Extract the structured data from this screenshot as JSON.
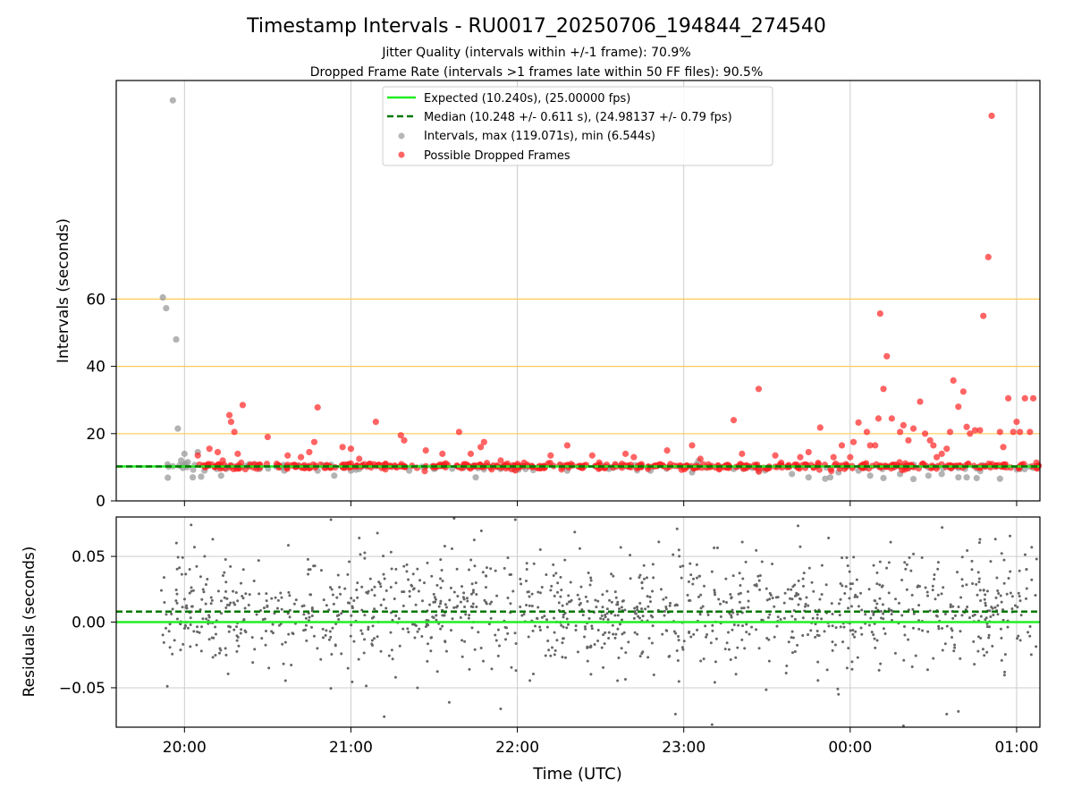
{
  "title": "Timestamp Intervals - RU0017_20250706_194844_274540",
  "subtitle_1": "Jitter Quality (intervals within +/-1 frame): 70.9%",
  "subtitle_2": "Dropped Frame Rate (intervals >1 frames late within 50 FF files): 90.5%",
  "colors": {
    "expected": "#22ee22",
    "median": "#007700",
    "intervals": "#999999",
    "dropped": "#ff2222",
    "threshold": "#ffcc55",
    "grid": "#cccccc",
    "residuals": "#666666"
  },
  "chart_data": [
    {
      "type": "scatter",
      "ylabel": "Intervals (seconds)",
      "ylim": [
        0,
        125
      ],
      "yticks": [
        "0",
        "20",
        "40",
        "60"
      ],
      "ytick_values": [
        0,
        20,
        40,
        60
      ],
      "xlim": [
        19.59,
        25.14
      ],
      "xticks": [
        "20:00",
        "21:00",
        "22:00",
        "23:00",
        "00:00",
        "01:00"
      ],
      "xtick_values": [
        20,
        21,
        22,
        23,
        24,
        25
      ],
      "grid": true,
      "legend_position": "upper-center",
      "threshold_lines": [
        20,
        40,
        60
      ],
      "series": [
        {
          "name": "Expected (10.240s), (25.00000 fps)",
          "kind": "hline",
          "value": 10.24
        },
        {
          "name": "Median (10.248 +/- 0.611 s), (24.98137 +/- 0.79 fps)",
          "kind": "hline-dashed",
          "value": 10.248
        },
        {
          "name": "Intervals, max (119.071s), min (6.544s)",
          "kind": "points",
          "x": [
            19.87,
            19.89,
            19.9,
            19.93,
            19.95,
            19.96,
            19.97,
            19.98,
            19.99,
            20.0,
            20.02,
            20.05,
            20.08,
            20.1,
            20.12,
            20.22,
            20.25,
            20.28,
            20.45,
            20.6,
            20.8,
            20.9,
            21.0,
            21.05,
            21.2,
            21.35,
            21.5,
            21.75,
            21.9,
            22.05,
            22.3,
            22.55,
            22.8,
            23.05,
            23.3,
            23.45,
            23.65,
            23.75,
            23.85,
            23.88,
            23.93,
            24.05,
            24.12,
            24.2,
            24.3,
            24.38,
            24.47,
            24.55,
            24.65,
            24.7,
            24.76,
            24.9,
            25.02
          ],
          "y": [
            60.5,
            57.3,
            6.9,
            119.1,
            48.0,
            21.5,
            10.5,
            12.0,
            9.8,
            14.0,
            11.5,
            7.0,
            14.5,
            7.2,
            9.0,
            7.5,
            9.5,
            10.5,
            9.5,
            9.0,
            9.0,
            7.5,
            9.0,
            9.5,
            10.0,
            9.0,
            9.5,
            7.0,
            9.5,
            9.5,
            9.0,
            9.5,
            9.0,
            8.5,
            9.5,
            9.0,
            8.0,
            7.0,
            6.6,
            7.0,
            8.5,
            9.0,
            7.5,
            6.8,
            8.0,
            6.5,
            7.5,
            8.0,
            7.0,
            7.0,
            6.8,
            6.6,
            9.5
          ]
        },
        {
          "name": "Possible Dropped Frames",
          "kind": "points",
          "x": [
            20.08,
            20.15,
            20.2,
            20.23,
            20.27,
            20.28,
            20.3,
            20.32,
            20.35,
            20.5,
            20.62,
            20.7,
            20.75,
            20.78,
            20.8,
            20.95,
            21.0,
            21.05,
            21.15,
            21.3,
            21.32,
            21.45,
            21.55,
            21.65,
            21.72,
            21.78,
            21.8,
            21.9,
            22.2,
            22.3,
            22.45,
            22.65,
            22.7,
            22.9,
            23.05,
            23.1,
            23.3,
            23.35,
            23.45,
            23.55,
            23.7,
            23.75,
            23.82,
            23.9,
            23.95,
            24.0,
            24.02,
            24.05,
            24.1,
            24.12,
            24.15,
            24.17,
            24.18,
            24.2,
            24.22,
            24.25,
            24.3,
            24.32,
            24.35,
            24.38,
            24.42,
            24.45,
            24.48,
            24.5,
            24.52,
            24.55,
            24.58,
            24.6,
            24.62,
            24.65,
            24.68,
            24.7,
            24.72,
            24.75,
            24.78,
            24.8,
            24.83,
            24.85,
            24.9,
            24.92,
            24.95,
            24.98,
            25.0,
            25.02,
            25.05,
            25.08,
            25.1
          ],
          "y": [
            13.5,
            15.5,
            14.5,
            12.0,
            25.5,
            23.5,
            20.5,
            14.0,
            28.5,
            19.0,
            13.5,
            13.0,
            14.5,
            17.5,
            27.8,
            16.0,
            15.5,
            12.5,
            23.5,
            19.5,
            18.0,
            15.0,
            14.0,
            20.5,
            14.0,
            16.0,
            17.5,
            12.0,
            13.5,
            16.5,
            13.5,
            14.0,
            13.0,
            15.0,
            16.5,
            12.5,
            24.0,
            14.0,
            33.3,
            13.5,
            13.0,
            14.5,
            21.8,
            13.0,
            16.5,
            13.0,
            17.5,
            23.3,
            20.5,
            16.5,
            16.5,
            24.5,
            55.7,
            33.3,
            43.0,
            24.5,
            20.5,
            22.5,
            18.0,
            21.5,
            29.5,
            20.0,
            18.0,
            16.5,
            13.0,
            14.0,
            15.5,
            20.5,
            35.8,
            28.0,
            32.5,
            22.0,
            20.0,
            21.0,
            21.0,
            55.0,
            72.5,
            114.5,
            20.5,
            16.0,
            30.5,
            20.5,
            23.5,
            20.5,
            30.5,
            20.5,
            30.5
          ]
        }
      ]
    },
    {
      "type": "scatter",
      "xlabel": "Time (UTC)",
      "ylabel": "Residuals (seconds)",
      "ylim": [
        -0.08,
        0.08
      ],
      "yticks": [
        "−0.05",
        "0.00",
        "0.05"
      ],
      "ytick_values": [
        -0.05,
        0.0,
        0.05
      ],
      "xlim": [
        19.59,
        25.14
      ],
      "xticks": [
        "20:00",
        "21:00",
        "22:00",
        "23:00",
        "00:00",
        "01:00"
      ],
      "xtick_values": [
        20,
        21,
        22,
        23,
        24,
        25
      ],
      "grid": true,
      "series": [
        {
          "name": "Expected",
          "kind": "hline",
          "value": 0.0
        },
        {
          "name": "Median",
          "kind": "hline-dashed",
          "value": 0.008
        },
        {
          "name": "Residuals",
          "kind": "points",
          "x_range": [
            19.86,
            25.14
          ],
          "count": 1250,
          "center": 0.008,
          "spread": 0.022,
          "outliers": [
            {
              "x": 20.04,
              "y": 0.074
            },
            {
              "x": 20.06,
              "y": 0.057
            },
            {
              "x": 20.88,
              "y": 0.078
            },
            {
              "x": 21.05,
              "y": 0.064
            },
            {
              "x": 21.2,
              "y": -0.072
            },
            {
              "x": 21.4,
              "y": -0.05
            },
            {
              "x": 21.62,
              "y": 0.079
            },
            {
              "x": 21.9,
              "y": -0.066
            },
            {
              "x": 22.85,
              "y": 0.061
            },
            {
              "x": 22.96,
              "y": 0.071
            },
            {
              "x": 22.95,
              "y": -0.07
            },
            {
              "x": 23.17,
              "y": -0.078
            },
            {
              "x": 23.87,
              "y": 0.064
            },
            {
              "x": 23.93,
              "y": -0.055
            },
            {
              "x": 24.32,
              "y": -0.079
            },
            {
              "x": 24.58,
              "y": -0.07
            },
            {
              "x": 24.65,
              "y": -0.068
            },
            {
              "x": 24.78,
              "y": 0.063
            },
            {
              "x": 25.12,
              "y": 0.048
            }
          ]
        }
      ]
    }
  ]
}
